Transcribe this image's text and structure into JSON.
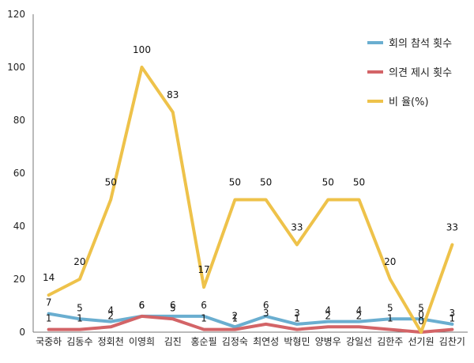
{
  "chart_data": {
    "type": "line",
    "title": "",
    "xlabel": "",
    "ylabel": "",
    "ylim": [
      0,
      120
    ],
    "yticks": [
      0,
      20,
      40,
      60,
      80,
      100,
      120
    ],
    "grid": false,
    "legend_position": "top-right",
    "categories": [
      "국중하",
      "김동수",
      "정회천",
      "이영희",
      "김진",
      "홍순필",
      "김정숙",
      "최연성",
      "박형민",
      "양병우",
      "강일선",
      "김한주",
      "선기원",
      "김찬기"
    ],
    "series": [
      {
        "name": "회의 참석 횟수",
        "color": "#6aaed0",
        "values": [
          7,
          5,
          4,
          6,
          6,
          6,
          2,
          6,
          3,
          4,
          4,
          5,
          5,
          3
        ]
      },
      {
        "name": "의견 제시 횟수",
        "color": "#d36467",
        "values": [
          1,
          1,
          2,
          6,
          5,
          1,
          1,
          3,
          1,
          2,
          2,
          1,
          0,
          1
        ]
      },
      {
        "name": "비 율(%)",
        "color": "#eec24a",
        "values": [
          14,
          20,
          50,
          100,
          83,
          17,
          50,
          50,
          33,
          50,
          50,
          20,
          0,
          33
        ]
      }
    ]
  }
}
